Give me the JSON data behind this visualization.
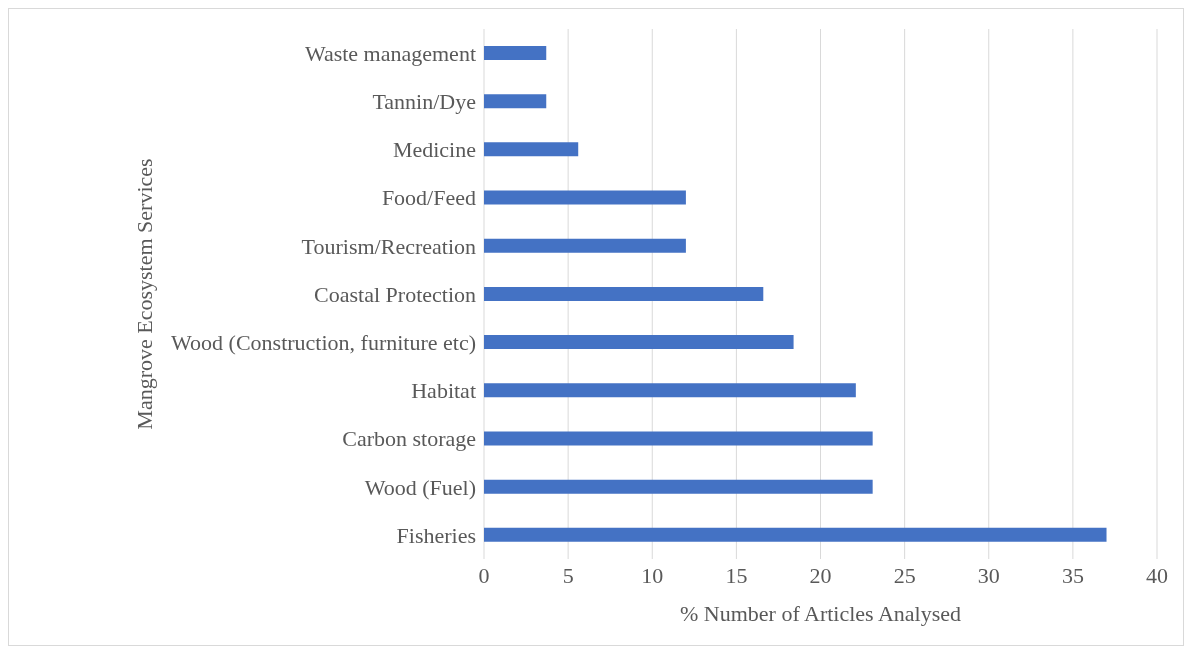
{
  "chart_data": {
    "type": "bar",
    "orientation": "horizontal",
    "xlabel": "% Number of Articles Analysed",
    "ylabel": "Mangrove Ecosystem Services",
    "categories": [
      "Waste management",
      "Tannin/Dye",
      "Medicine",
      "Food/Feed",
      "Tourism/Recreation",
      "Coastal Protection",
      "Wood (Construction, furniture etc)",
      "Habitat",
      "Carbon storage",
      "Wood (Fuel)",
      "Fisheries"
    ],
    "values": [
      3.7,
      3.7,
      5.6,
      12,
      12,
      16.6,
      18.4,
      22.1,
      23.1,
      23.1,
      37
    ],
    "color": "#4472c4",
    "xlim": [
      0,
      40
    ],
    "xticks": [
      0,
      5,
      10,
      15,
      20,
      25,
      30,
      35,
      40
    ],
    "grid": "x",
    "legend": false
  }
}
